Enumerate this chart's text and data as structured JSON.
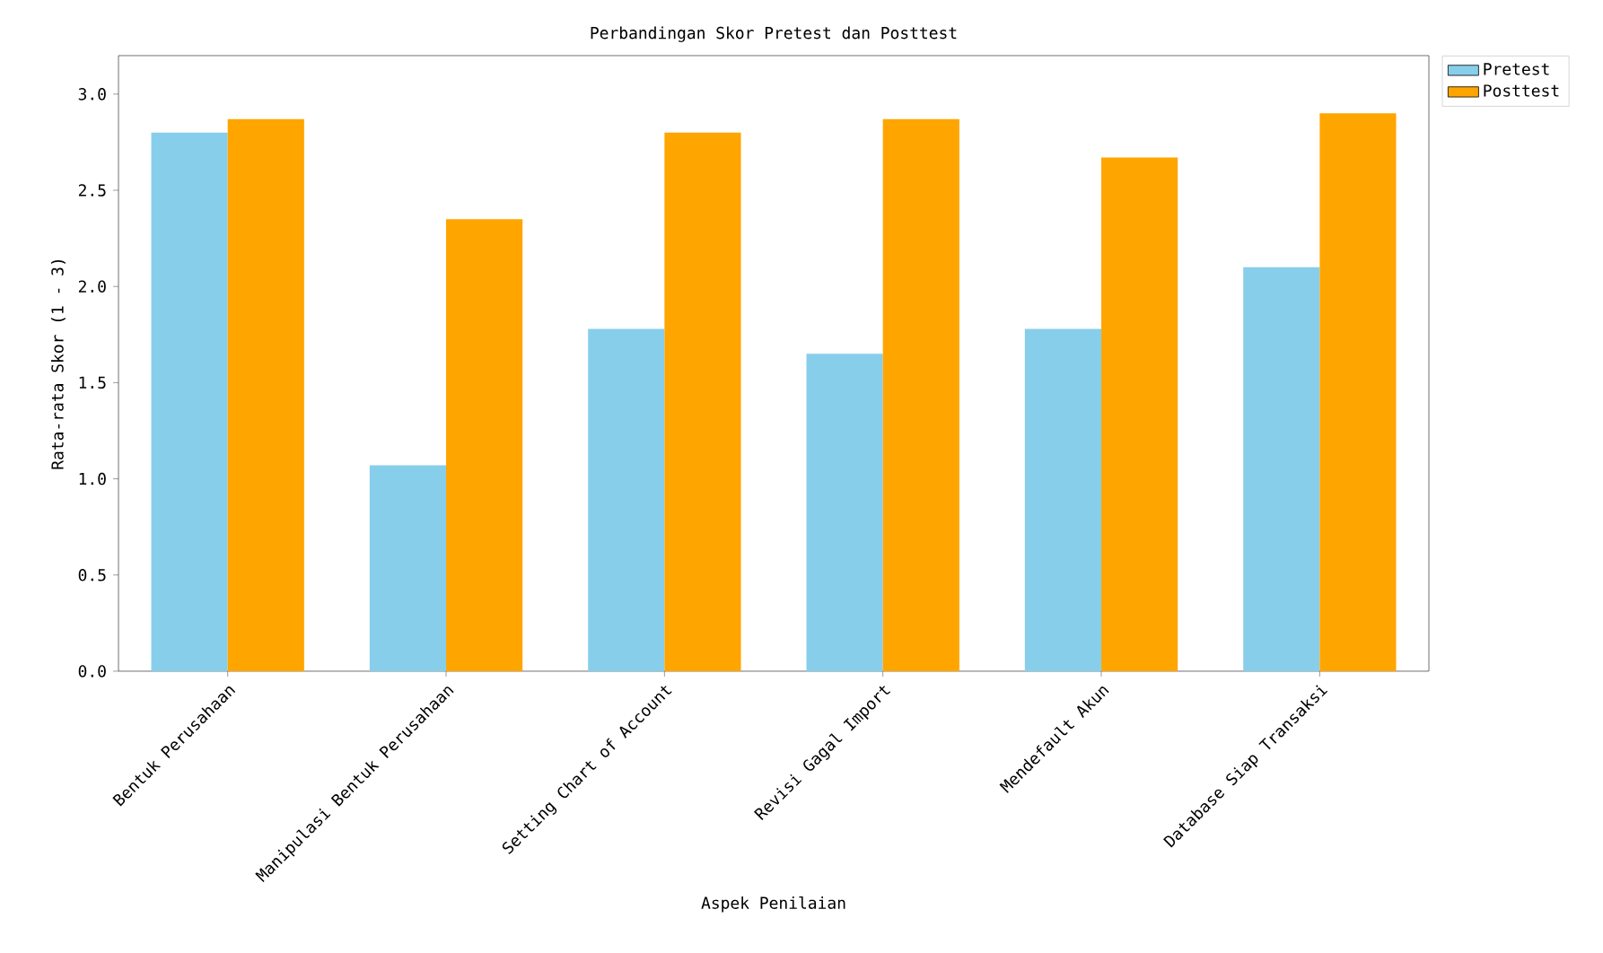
{
  "chart_data": {
    "type": "bar",
    "title": "Perbandingan Skor Pretest dan Posttest",
    "xlabel": "Aspek Penilaian",
    "ylabel": "Rata-rata Skor (1 - 3)",
    "categories": [
      "Bentuk Perusahaan",
      "Manipulasi Bentuk Perusahaan",
      "Setting Chart of Account",
      "Revisi Gagal Import",
      "Mendefault Akun",
      "Database Siap Transaksi"
    ],
    "series": [
      {
        "name": "Pretest",
        "color": "#87ceeb",
        "values": [
          2.8,
          1.07,
          1.78,
          1.65,
          1.78,
          2.1
        ]
      },
      {
        "name": "Posttest",
        "color": "#ffa500",
        "values": [
          2.87,
          2.35,
          2.8,
          2.87,
          2.67,
          2.9
        ]
      }
    ],
    "ylim": [
      0,
      3.2
    ],
    "yticks": [
      {
        "value": 0,
        "label": "0.0"
      },
      {
        "value": 0.5,
        "label": "0.5"
      },
      {
        "value": 1,
        "label": "1.0"
      },
      {
        "value": 1.5,
        "label": "1.5"
      },
      {
        "value": 2,
        "label": "2.0"
      },
      {
        "value": 2.5,
        "label": "2.5"
      },
      {
        "value": 3,
        "label": "3.0"
      }
    ],
    "legend": "top right"
  }
}
